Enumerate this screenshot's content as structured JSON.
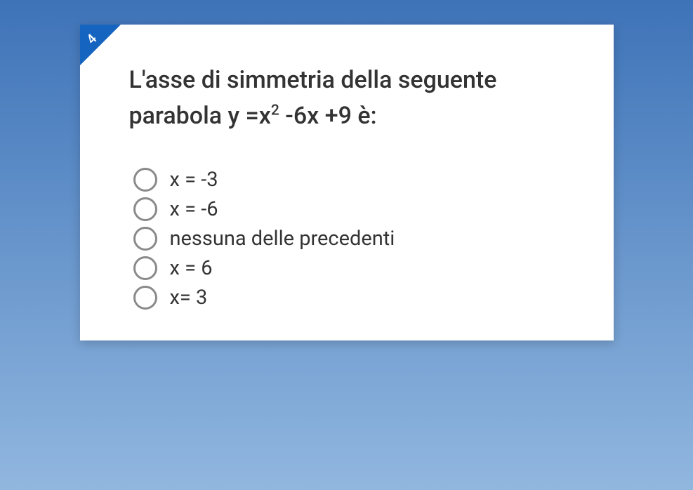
{
  "background": {
    "gradient_top": "#3e73b8",
    "gradient_bottom": "#91b7df"
  },
  "card": {
    "background_color": "#ffffff",
    "shadow_color": "rgba(0,0,0,0.18)",
    "badge_color": "#1565c0",
    "question_number": "4",
    "text_color": "#333333",
    "radio_border_color": "#8a8a8a"
  },
  "question": {
    "pre": "L'asse di simmetria della seguente parabola y =x",
    "sup": "2",
    "post": " -6x +9 è:"
  },
  "options": [
    {
      "label": "x = -3"
    },
    {
      "label": "x = -6"
    },
    {
      "label": "nessuna delle precedenti"
    },
    {
      "label": "x = 6"
    },
    {
      "label": "x= 3"
    }
  ]
}
